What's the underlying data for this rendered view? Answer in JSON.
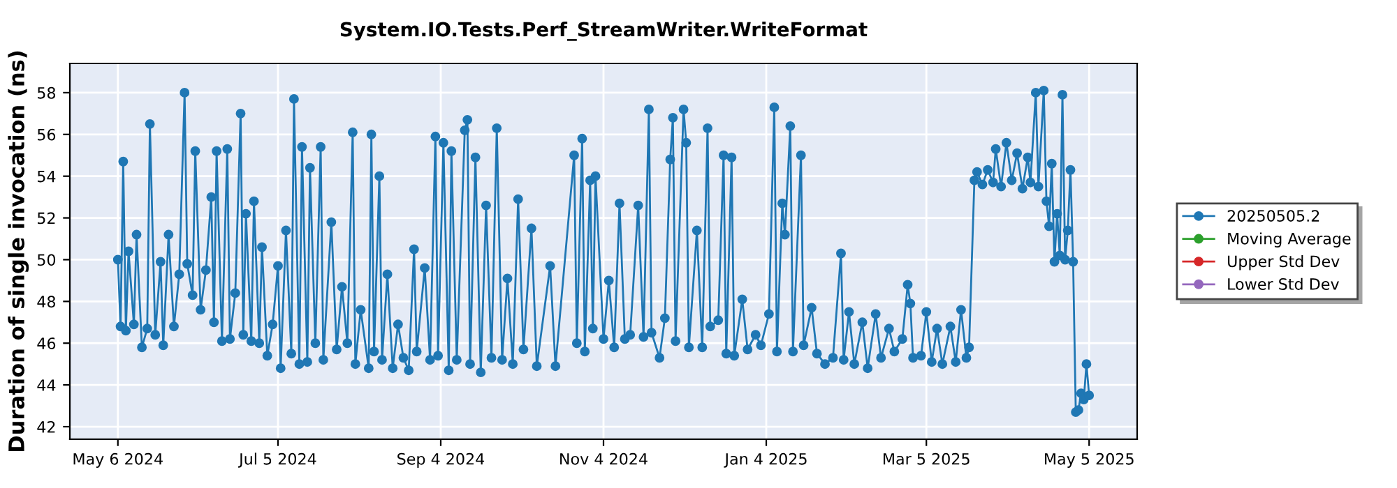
{
  "chart_data": {
    "type": "line",
    "title": "System.IO.Tests.Perf_StreamWriter.WriteFormat",
    "ylabel": "Duration of single invocation (ns)",
    "xlim": [
      "2024-04-18",
      "2025-05-23"
    ],
    "ylim": [
      41.4,
      59.4
    ],
    "xticks": [
      {
        "value": "2024-05-06",
        "label": "May 6 2024"
      },
      {
        "value": "2024-07-05",
        "label": "Jul 5 2024"
      },
      {
        "value": "2024-09-04",
        "label": "Sep 4 2024"
      },
      {
        "value": "2024-11-04",
        "label": "Nov 4 2024"
      },
      {
        "value": "2025-01-04",
        "label": "Jan 4 2025"
      },
      {
        "value": "2025-03-05",
        "label": "Mar 5 2025"
      },
      {
        "value": "2025-05-05",
        "label": "May 5 2025"
      }
    ],
    "yticks": [
      42,
      44,
      46,
      48,
      50,
      52,
      54,
      56,
      58
    ],
    "grid": true,
    "legend": "right",
    "marker": "circle",
    "line_style": "solid",
    "series": [
      {
        "name": "20250505.2",
        "color": "#1f77b4",
        "x": [
          "2024-05-06",
          "2024-05-07",
          "2024-05-08",
          "2024-05-09",
          "2024-05-10",
          "2024-05-12",
          "2024-05-13",
          "2024-05-15",
          "2024-05-17",
          "2024-05-18",
          "2024-05-20",
          "2024-05-22",
          "2024-05-23",
          "2024-05-25",
          "2024-05-27",
          "2024-05-29",
          "2024-05-31",
          "2024-06-01",
          "2024-06-03",
          "2024-06-04",
          "2024-06-06",
          "2024-06-08",
          "2024-06-10",
          "2024-06-11",
          "2024-06-12",
          "2024-06-14",
          "2024-06-16",
          "2024-06-17",
          "2024-06-19",
          "2024-06-21",
          "2024-06-22",
          "2024-06-23",
          "2024-06-25",
          "2024-06-26",
          "2024-06-28",
          "2024-06-29",
          "2024-07-01",
          "2024-07-03",
          "2024-07-05",
          "2024-07-06",
          "2024-07-08",
          "2024-07-10",
          "2024-07-11",
          "2024-07-13",
          "2024-07-14",
          "2024-07-16",
          "2024-07-17",
          "2024-07-19",
          "2024-07-21",
          "2024-07-22",
          "2024-07-25",
          "2024-07-27",
          "2024-07-29",
          "2024-07-31",
          "2024-08-02",
          "2024-08-03",
          "2024-08-05",
          "2024-08-08",
          "2024-08-09",
          "2024-08-10",
          "2024-08-12",
          "2024-08-13",
          "2024-08-15",
          "2024-08-17",
          "2024-08-19",
          "2024-08-21",
          "2024-08-23",
          "2024-08-25",
          "2024-08-26",
          "2024-08-29",
          "2024-08-31",
          "2024-09-02",
          "2024-09-03",
          "2024-09-05",
          "2024-09-07",
          "2024-09-08",
          "2024-09-10",
          "2024-09-13",
          "2024-09-14",
          "2024-09-15",
          "2024-09-17",
          "2024-09-19",
          "2024-09-21",
          "2024-09-23",
          "2024-09-25",
          "2024-09-27",
          "2024-09-29",
          "2024-10-01",
          "2024-10-03",
          "2024-10-05",
          "2024-10-08",
          "2024-10-10",
          "2024-10-15",
          "2024-10-17",
          "2024-10-24",
          "2024-10-25",
          "2024-10-27",
          "2024-10-28",
          "2024-10-30",
          "2024-10-31",
          "2024-11-01",
          "2024-11-04",
          "2024-11-06",
          "2024-11-08",
          "2024-11-10",
          "2024-11-12",
          "2024-11-14",
          "2024-11-17",
          "2024-11-19",
          "2024-11-21",
          "2024-11-22",
          "2024-11-25",
          "2024-11-27",
          "2024-11-29",
          "2024-11-30",
          "2024-12-01",
          "2024-12-04",
          "2024-12-05",
          "2024-12-06",
          "2024-12-09",
          "2024-12-11",
          "2024-12-13",
          "2024-12-14",
          "2024-12-17",
          "2024-12-19",
          "2024-12-20",
          "2024-12-22",
          "2024-12-23",
          "2024-12-26",
          "2024-12-28",
          "2024-12-31",
          "2025-01-02",
          "2025-01-05",
          "2025-01-07",
          "2025-01-08",
          "2025-01-10",
          "2025-01-11",
          "2025-01-13",
          "2025-01-14",
          "2025-01-17",
          "2025-01-18",
          "2025-01-21",
          "2025-01-23",
          "2025-01-26",
          "2025-01-29",
          "2025-02-01",
          "2025-02-02",
          "2025-02-04",
          "2025-02-06",
          "2025-02-09",
          "2025-02-11",
          "2025-02-14",
          "2025-02-16",
          "2025-02-19",
          "2025-02-21",
          "2025-02-24",
          "2025-02-26",
          "2025-02-27",
          "2025-02-28",
          "2025-03-03",
          "2025-03-05",
          "2025-03-07",
          "2025-03-09",
          "2025-03-11",
          "2025-03-14",
          "2025-03-16",
          "2025-03-18",
          "2025-03-20",
          "2025-03-21",
          "2025-03-23",
          "2025-03-24",
          "2025-03-26",
          "2025-03-28",
          "2025-03-30",
          "2025-03-31",
          "2025-04-02",
          "2025-04-04",
          "2025-04-06",
          "2025-04-08",
          "2025-04-10",
          "2025-04-12",
          "2025-04-13",
          "2025-04-15",
          "2025-04-16",
          "2025-04-18",
          "2025-04-19",
          "2025-04-20",
          "2025-04-21",
          "2025-04-22",
          "2025-04-23",
          "2025-04-24",
          "2025-04-25",
          "2025-04-26",
          "2025-04-27",
          "2025-04-28",
          "2025-04-29",
          "2025-04-30",
          "2025-05-01",
          "2025-05-02",
          "2025-05-03",
          "2025-05-04",
          "2025-05-05"
        ],
        "values": [
          50.0,
          46.8,
          54.7,
          46.6,
          50.4,
          46.9,
          51.2,
          45.8,
          46.7,
          56.5,
          46.4,
          49.9,
          45.9,
          51.2,
          46.8,
          49.3,
          58.0,
          49.8,
          48.3,
          55.2,
          47.6,
          49.5,
          53.0,
          47.0,
          55.2,
          46.1,
          55.3,
          46.2,
          48.4,
          57.0,
          46.4,
          52.2,
          46.1,
          52.8,
          46.0,
          50.6,
          45.4,
          46.9,
          49.7,
          44.8,
          51.4,
          45.5,
          57.7,
          45.0,
          55.4,
          45.1,
          54.4,
          46.0,
          55.4,
          45.2,
          51.8,
          45.7,
          48.7,
          46.0,
          56.1,
          45.0,
          47.6,
          44.8,
          56.0,
          45.6,
          54.0,
          45.2,
          49.3,
          44.8,
          46.9,
          45.3,
          44.7,
          50.5,
          45.6,
          49.6,
          45.2,
          55.9,
          45.4,
          55.6,
          44.7,
          55.2,
          45.2,
          56.2,
          56.7,
          45.0,
          54.9,
          44.6,
          52.6,
          45.3,
          56.3,
          45.2,
          49.1,
          45.0,
          52.9,
          45.7,
          51.5,
          44.9,
          49.7,
          44.9,
          55.0,
          46.0,
          55.8,
          45.6,
          53.8,
          46.7,
          54.0,
          46.2,
          49.0,
          45.8,
          52.7,
          46.2,
          46.4,
          52.6,
          46.3,
          57.2,
          46.5,
          45.3,
          47.2,
          54.8,
          56.8,
          46.1,
          57.2,
          55.6,
          45.8,
          51.4,
          45.8,
          56.3,
          46.8,
          47.1,
          55.0,
          45.5,
          54.9,
          45.4,
          48.1,
          45.7,
          46.4,
          45.9,
          47.4,
          57.3,
          45.6,
          52.7,
          51.2,
          56.4,
          45.6,
          55.0,
          45.9,
          47.7,
          45.5,
          45.0,
          45.3,
          50.3,
          45.2,
          47.5,
          45.0,
          47.0,
          44.8,
          47.4,
          45.3,
          46.7,
          45.6,
          46.2,
          48.8,
          47.9,
          45.3,
          45.4,
          47.5,
          45.1,
          46.7,
          45.0,
          46.8,
          45.1,
          47.6,
          45.3,
          45.8,
          53.8,
          54.2,
          53.6,
          54.3,
          53.7,
          55.3,
          53.5,
          55.6,
          53.8,
          55.1,
          53.4,
          54.9,
          53.7,
          58.0,
          53.5,
          58.1,
          52.8,
          51.6,
          54.6,
          49.9,
          52.2,
          50.2,
          57.9,
          50.0,
          51.4,
          54.3,
          49.9,
          42.7,
          42.8,
          43.6,
          43.3,
          45.0,
          43.5
        ]
      },
      {
        "name": "Moving Average",
        "color": "#2ca02c"
      },
      {
        "name": "Upper Std Dev",
        "color": "#d62728"
      },
      {
        "name": "Lower Std Dev",
        "color": "#9467bd"
      }
    ]
  }
}
